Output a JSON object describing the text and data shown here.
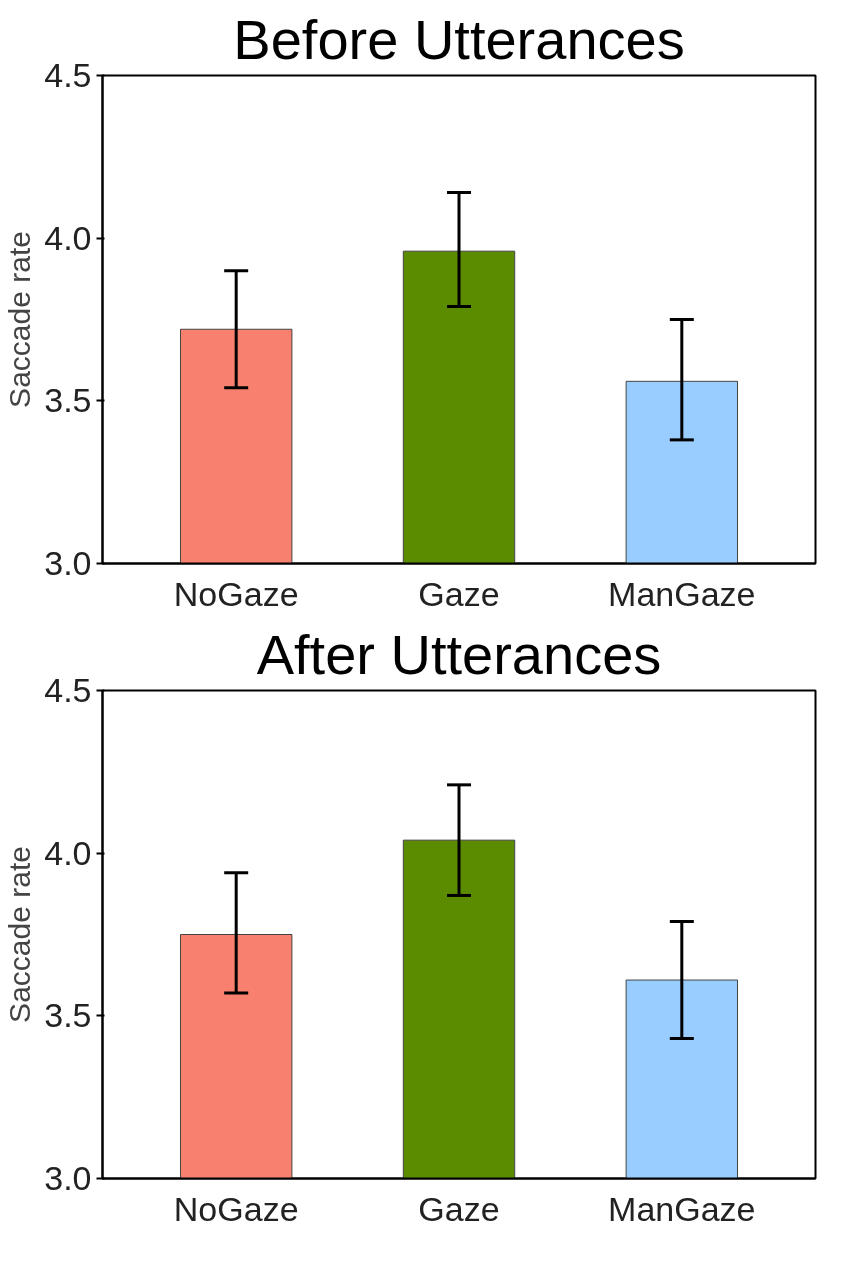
{
  "chart_data": [
    {
      "type": "bar",
      "title": "Before Utterances",
      "ylabel": "Saccade rate",
      "categories": [
        "NoGaze",
        "Gaze",
        "ManGaze"
      ],
      "values": [
        3.72,
        3.96,
        3.56
      ],
      "colors": [
        "#f8806f",
        "#5b8c00",
        "#99ccff"
      ],
      "errors": [
        [
          3.54,
          3.9
        ],
        [
          3.79,
          4.14
        ],
        [
          3.38,
          3.75
        ]
      ],
      "ylim": [
        3.0,
        4.5
      ],
      "yticks": [
        {
          "value": 3.0,
          "label": "3.0"
        },
        {
          "value": 3.5,
          "label": "3.5"
        },
        {
          "value": 4.0,
          "label": "4.0"
        },
        {
          "value": 4.5,
          "label": "4.5"
        }
      ],
      "grid": false
    },
    {
      "type": "bar",
      "title": "After Utterances",
      "ylabel": "Saccade rate",
      "categories": [
        "NoGaze",
        "Gaze",
        "ManGaze"
      ],
      "values": [
        3.75,
        4.04,
        3.61
      ],
      "colors": [
        "#f8806f",
        "#5b8c00",
        "#99ccff"
      ],
      "errors": [
        [
          3.57,
          3.94
        ],
        [
          3.87,
          4.21
        ],
        [
          3.43,
          3.79
        ]
      ],
      "ylim": [
        3.0,
        4.5
      ],
      "yticks": [
        {
          "value": 3.0,
          "label": "3.0"
        },
        {
          "value": 3.5,
          "label": "3.5"
        },
        {
          "value": 4.0,
          "label": "4.0"
        },
        {
          "value": 4.5,
          "label": "4.5"
        }
      ],
      "grid": false
    }
  ]
}
